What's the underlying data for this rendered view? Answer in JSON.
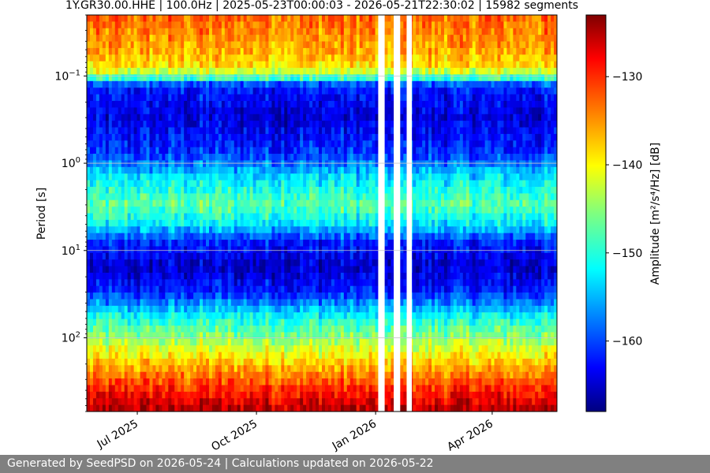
{
  "footer": {
    "text": "Generated by SeedPSD on 2026-05-24 | Calculations updated on 2026-05-22"
  },
  "colors": {
    "footer_bg": "#808080",
    "colormap": "jet",
    "grid": "#c8c8c8"
  },
  "chart_data": {
    "type": "heatmap",
    "title": "1Y.GR30.00.HHE | 100.0Hz | 2025-05-23T00:00:03 - 2026-05-21T22:30:02 | 15982 segments",
    "xlabel": "",
    "ylabel": "Period [s]",
    "colorbar_label": "Amplitude [m²/s⁴/Hz] [dB]",
    "x_range": [
      "2025-05-23",
      "2026-05-21"
    ],
    "y_scale": "log",
    "y_range": [
      0.02,
      700
    ],
    "y_ticks": [
      {
        "value": 0.1,
        "label": "10^-1"
      },
      {
        "value": 1,
        "label": "10^0"
      },
      {
        "value": 10,
        "label": "10^1"
      },
      {
        "value": 100,
        "label": "10^2"
      }
    ],
    "x_ticks": [
      {
        "date": "2025-07-01",
        "label": "Jul 2025"
      },
      {
        "date": "2025-10-01",
        "label": "Oct 2025"
      },
      {
        "date": "2026-01-01",
        "label": "Jan 2026"
      },
      {
        "date": "2026-04-01",
        "label": "Apr 2026"
      }
    ],
    "color_range": [
      -168,
      -123
    ],
    "colorbar_ticks": [
      -130,
      -140,
      -150,
      -160
    ],
    "grid": true,
    "data_gaps": [
      [
        "2026-01-03",
        "2026-01-08"
      ],
      [
        "2026-01-15",
        "2026-01-20"
      ],
      [
        "2026-01-25",
        "2026-01-29"
      ]
    ],
    "period_profile_db": [
      {
        "period": 0.02,
        "db": -133
      },
      {
        "period": 0.05,
        "db": -136
      },
      {
        "period": 0.08,
        "db": -139
      },
      {
        "period": 0.1,
        "db": -146
      },
      {
        "period": 0.13,
        "db": -161
      },
      {
        "period": 0.3,
        "db": -164
      },
      {
        "period": 0.8,
        "db": -160
      },
      {
        "period": 1.5,
        "db": -152
      },
      {
        "period": 3,
        "db": -147
      },
      {
        "period": 5,
        "db": -152
      },
      {
        "period": 8,
        "db": -161
      },
      {
        "period": 15,
        "db": -165
      },
      {
        "period": 30,
        "db": -161
      },
      {
        "period": 60,
        "db": -150
      },
      {
        "period": 100,
        "db": -145
      },
      {
        "period": 200,
        "db": -137
      },
      {
        "period": 400,
        "db": -130
      },
      {
        "period": 700,
        "db": -125
      }
    ]
  }
}
